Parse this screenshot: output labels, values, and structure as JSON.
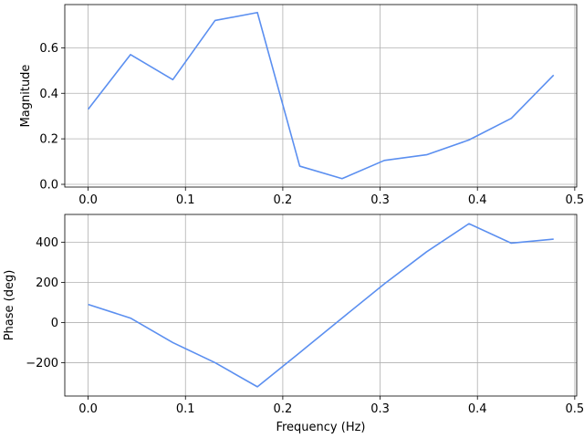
{
  "chart_data": [
    {
      "type": "line",
      "xlabel": "",
      "ylabel": "Magnitude",
      "grid": true,
      "xlim": [
        -0.024,
        0.502
      ],
      "ylim": [
        -0.012,
        0.79
      ],
      "xticks": [
        0.0,
        0.1,
        0.2,
        0.3,
        0.4,
        0.5
      ],
      "xtick_labels": [
        "0.0",
        "0.1",
        "0.2",
        "0.3",
        "0.4",
        "0.5"
      ],
      "yticks": [
        0.0,
        0.2,
        0.4,
        0.6
      ],
      "ytick_labels": [
        "0.0",
        "0.2",
        "0.4",
        "0.6"
      ],
      "line_color": "#5b8ff0",
      "series": [
        {
          "x": [
            0.0,
            0.0435,
            0.087,
            0.1304,
            0.1739,
            0.2174,
            0.2609,
            0.3043,
            0.3478,
            0.3913,
            0.4348,
            0.4783
          ],
          "values": [
            0.33,
            0.57,
            0.46,
            0.72,
            0.755,
            0.08,
            0.025,
            0.105,
            0.13,
            0.195,
            0.29,
            0.48
          ]
        }
      ]
    },
    {
      "type": "line",
      "xlabel": "Frequency (Hz)",
      "ylabel": "Phase (deg)",
      "grid": true,
      "xlim": [
        -0.024,
        0.502
      ],
      "ylim": [
        -366,
        538
      ],
      "xticks": [
        0.0,
        0.1,
        0.2,
        0.3,
        0.4,
        0.5
      ],
      "xtick_labels": [
        "0.0",
        "0.1",
        "0.2",
        "0.3",
        "0.4",
        "0.5"
      ],
      "yticks": [
        -200,
        0,
        200,
        400
      ],
      "ytick_labels": [
        "−200",
        "0",
        "200",
        "400"
      ],
      "line_color": "#5b8ff0",
      "series": [
        {
          "x": [
            0.0,
            0.0435,
            0.087,
            0.1304,
            0.1739,
            0.2174,
            0.2609,
            0.3043,
            0.3478,
            0.3913,
            0.4348,
            0.4783
          ],
          "values": [
            90,
            22,
            -100,
            -200,
            -320,
            -150,
            22,
            192,
            352,
            492,
            395,
            415
          ]
        }
      ]
    }
  ]
}
